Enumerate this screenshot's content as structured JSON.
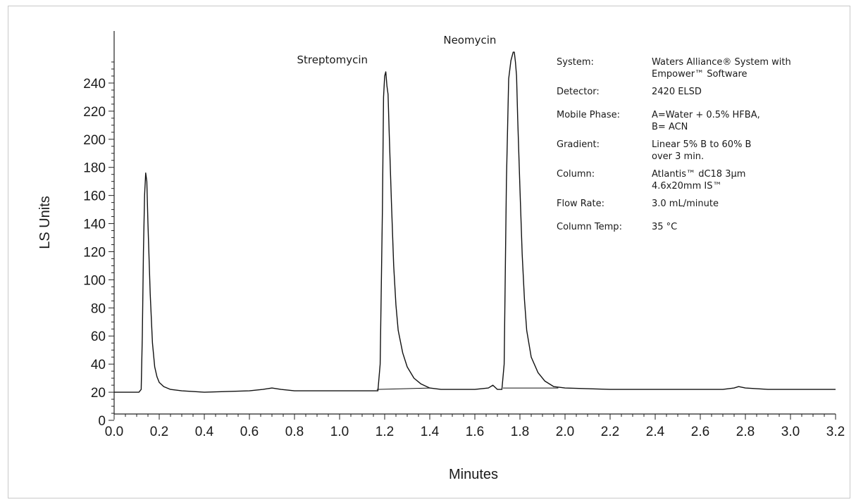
{
  "chart_data": {
    "type": "line",
    "xlabel": "Minutes",
    "ylabel": "LS Units",
    "xlim": [
      0,
      3.2
    ],
    "ylim": [
      0,
      260
    ],
    "x_ticks": [
      "0.0",
      "0.2",
      "0.4",
      "0.6",
      "0.8",
      "1.0",
      "1.2",
      "1.4",
      "1.6",
      "1.8",
      "2.0",
      "2.2",
      "2.4",
      "2.6",
      "2.8",
      "3.0",
      "3.2"
    ],
    "y_ticks": [
      "0",
      "20",
      "40",
      "60",
      "80",
      "100",
      "120",
      "140",
      "160",
      "180",
      "200",
      "220",
      "240"
    ],
    "grid": false,
    "series": [
      {
        "x": [
          0.0,
          0.11,
          0.12,
          0.125,
          0.13,
          0.135,
          0.14,
          0.145,
          0.15,
          0.16,
          0.17,
          0.18,
          0.19,
          0.2,
          0.22,
          0.25,
          0.3,
          0.4,
          0.6,
          0.66,
          0.7,
          0.74,
          0.8,
          1.0,
          1.17,
          1.18,
          1.19,
          1.195,
          1.2,
          1.205,
          1.21,
          1.215,
          1.22,
          1.23,
          1.24,
          1.25,
          1.26,
          1.28,
          1.3,
          1.33,
          1.36,
          1.4,
          1.45,
          1.5,
          1.6,
          1.66,
          1.68,
          1.7,
          1.72,
          1.73,
          1.74,
          1.75,
          1.76,
          1.77,
          1.775,
          1.78,
          1.785,
          1.79,
          1.8,
          1.81,
          1.82,
          1.83,
          1.85,
          1.88,
          1.91,
          1.95,
          2.0,
          2.2,
          2.7,
          2.75,
          2.77,
          2.8,
          2.9,
          3.2
        ],
        "values": [
          20,
          20,
          22,
          60,
          120,
          160,
          176,
          170,
          140,
          90,
          55,
          38,
          31,
          27,
          24,
          22,
          21,
          20,
          21,
          22,
          23,
          22,
          21,
          21,
          21,
          40,
          150,
          230,
          245,
          248,
          238,
          232,
          205,
          155,
          110,
          82,
          64,
          48,
          38,
          30,
          26,
          23,
          22,
          22,
          22,
          23,
          25,
          22,
          22,
          40,
          170,
          243,
          256,
          262,
          262,
          255,
          245,
          215,
          165,
          118,
          86,
          64,
          45,
          34,
          28,
          24,
          23,
          22,
          22,
          23,
          24,
          23,
          22,
          22
        ]
      }
    ],
    "annotations": [
      {
        "text": "Streptomycin",
        "x": 1.2,
        "y": 248
      },
      {
        "text": "Neomycin",
        "x": 1.77,
        "y": 262
      }
    ]
  },
  "info_panel": [
    {
      "key": "System:",
      "lines": [
        "Waters Alliance® System with",
        "Empower™ Software"
      ]
    },
    {
      "key": "Detector:",
      "lines": [
        "2420 ELSD"
      ]
    },
    {
      "key": "Mobile Phase:",
      "lines": [
        "A=Water + 0.5% HFBA,",
        "B= ACN"
      ]
    },
    {
      "key": "Gradient:",
      "lines": [
        "Linear 5% B to 60% B",
        "over 3 min."
      ]
    },
    {
      "key": "Column:",
      "lines": [
        "Atlantis™ dC18 3μm",
        "4.6x20mm IS™"
      ]
    },
    {
      "key": "Flow Rate:",
      "lines": [
        "3.0 mL/minute"
      ]
    },
    {
      "key": "Column Temp:",
      "lines": [
        "35 °C"
      ]
    }
  ]
}
